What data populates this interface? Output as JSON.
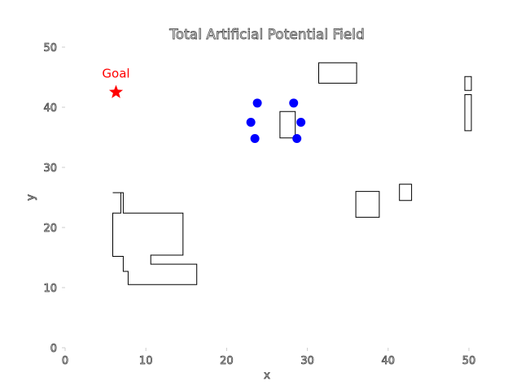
{
  "chart_data": {
    "type": "scatter",
    "title": "Total Artificial Potential Field",
    "xlabel": "x",
    "ylabel": "y",
    "xlim": [
      0,
      50
    ],
    "ylim": [
      0,
      50
    ],
    "x_ticks": [
      "0",
      "10",
      "20",
      "30",
      "40",
      "50"
    ],
    "y_ticks": [
      "0",
      "10",
      "20",
      "30",
      "40",
      "50"
    ],
    "grid": false,
    "goal": {
      "label": "Goal",
      "x": 6.3,
      "y": 42.5,
      "color": "#ff0000",
      "marker": "star"
    },
    "agents": {
      "color": "#0000ff",
      "points": [
        {
          "x": 23.8,
          "y": 40.7
        },
        {
          "x": 28.3,
          "y": 40.7
        },
        {
          "x": 23.0,
          "y": 37.5
        },
        {
          "x": 29.2,
          "y": 37.5
        },
        {
          "x": 23.5,
          "y": 34.8
        },
        {
          "x": 28.7,
          "y": 34.8
        }
      ]
    },
    "obstacles": [
      {
        "points": [
          [
            5.9,
            25.8
          ],
          [
            7.2,
            25.8
          ],
          [
            7.2,
            22.4
          ],
          [
            14.6,
            22.4
          ],
          [
            14.6,
            15.4
          ],
          [
            10.6,
            15.4
          ],
          [
            10.6,
            13.9
          ],
          [
            16.3,
            13.9
          ],
          [
            16.3,
            10.5
          ],
          [
            7.8,
            10.5
          ],
          [
            7.8,
            12.7
          ],
          [
            7.2,
            12.7
          ],
          [
            7.2,
            15.2
          ],
          [
            5.9,
            15.2
          ],
          [
            5.9,
            22.4
          ],
          [
            6.9,
            22.4
          ],
          [
            6.9,
            25.8
          ]
        ]
      },
      {
        "points": [
          [
            26.6,
            39.3
          ],
          [
            28.5,
            39.3
          ],
          [
            28.5,
            34.9
          ],
          [
            26.6,
            34.9
          ]
        ]
      },
      {
        "points": [
          [
            31.4,
            47.4
          ],
          [
            36.1,
            47.4
          ],
          [
            36.1,
            44.0
          ],
          [
            31.4,
            44.0
          ]
        ]
      },
      {
        "points": [
          [
            36.0,
            26.0
          ],
          [
            38.9,
            26.0
          ],
          [
            38.9,
            21.7
          ],
          [
            36.0,
            21.7
          ]
        ]
      },
      {
        "points": [
          [
            41.4,
            27.2
          ],
          [
            42.9,
            27.2
          ],
          [
            42.9,
            24.5
          ],
          [
            41.4,
            24.5
          ]
        ]
      },
      {
        "points": [
          [
            49.5,
            45.1
          ],
          [
            50.3,
            45.1
          ],
          [
            50.3,
            42.8
          ],
          [
            49.5,
            42.8
          ]
        ]
      },
      {
        "points": [
          [
            49.5,
            42.1
          ],
          [
            50.3,
            42.1
          ],
          [
            50.3,
            36.1
          ],
          [
            49.5,
            36.1
          ]
        ]
      }
    ]
  }
}
